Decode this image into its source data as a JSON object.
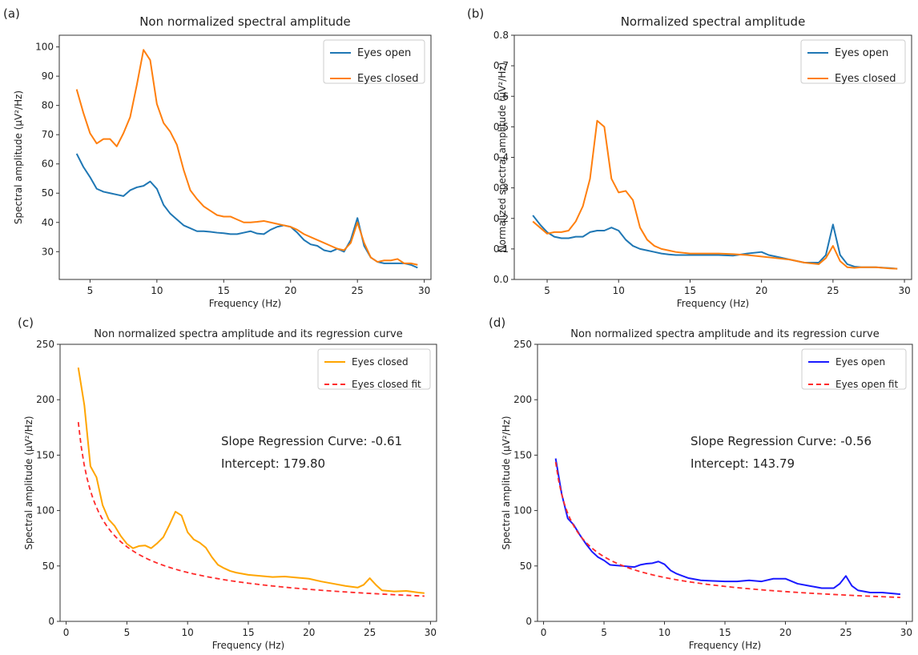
{
  "chart_data": [
    {
      "panel_label": "(a)",
      "type": "line",
      "title": "Non normalized spectral amplitude",
      "xlabel": "Frequency (Hz)",
      "ylabel": "Spectral amplitude (μV²/Hz)",
      "xlim": [
        2.7,
        30.5
      ],
      "ylim": [
        20.5,
        104
      ],
      "xticks": [
        5,
        10,
        15,
        20,
        25,
        30
      ],
      "yticks": [
        30,
        40,
        50,
        60,
        70,
        80,
        90,
        100
      ],
      "legend_position": "top-right",
      "series": [
        {
          "name": "Eyes open",
          "color": "#1f77b4",
          "x": [
            4,
            4.5,
            5,
            5.5,
            6,
            6.5,
            7,
            7.5,
            8,
            8.5,
            9,
            9.5,
            10,
            10.5,
            11,
            11.5,
            12,
            12.5,
            13,
            13.5,
            14,
            14.5,
            15,
            15.5,
            16,
            16.5,
            17,
            17.5,
            18,
            18.5,
            19,
            19.5,
            20,
            20.5,
            21,
            21.5,
            22,
            22.5,
            23,
            23.5,
            24,
            24.5,
            25,
            25.5,
            26,
            26.5,
            27,
            27.5,
            28,
            28.5,
            29,
            29.5
          ],
          "y": [
            63.5,
            59,
            55.5,
            51.5,
            50.5,
            50,
            49.5,
            49,
            51,
            52,
            52.5,
            54,
            51.5,
            46,
            43,
            41,
            39,
            38,
            37,
            37,
            36.8,
            36.5,
            36.3,
            36,
            36,
            36.5,
            37,
            36.2,
            36,
            37.5,
            38.5,
            39,
            38.5,
            36.5,
            34,
            32.5,
            32,
            30.5,
            30,
            31,
            30,
            34,
            41.5,
            32,
            28,
            26.5,
            26,
            26,
            26,
            26,
            25.5,
            24.5
          ]
        },
        {
          "name": "Eyes closed",
          "color": "#ff7f0e",
          "x": [
            4,
            4.5,
            5,
            5.5,
            6,
            6.5,
            7,
            7.5,
            8,
            8.5,
            9,
            9.5,
            10,
            10.5,
            11,
            11.5,
            12,
            12.5,
            13,
            13.5,
            14,
            14.5,
            15,
            15.5,
            16,
            16.5,
            17,
            17.5,
            18,
            18.5,
            19,
            19.5,
            20,
            20.5,
            21,
            21.5,
            22,
            22.5,
            23,
            23.5,
            24,
            24.5,
            25,
            25.5,
            26,
            26.5,
            27,
            27.5,
            28,
            28.5,
            29,
            29.5
          ],
          "y": [
            85.5,
            77.5,
            70.5,
            67,
            68.5,
            68.5,
            66,
            70.5,
            76,
            87,
            99,
            95.5,
            80.5,
            74,
            71,
            66.5,
            58,
            51,
            48,
            45.5,
            44,
            42.5,
            42,
            42,
            41,
            40,
            40,
            40.2,
            40.5,
            40,
            39.5,
            39,
            38.5,
            37.5,
            36,
            35,
            34,
            33,
            32,
            31,
            30.5,
            33,
            40,
            33,
            28,
            26.5,
            27,
            27,
            27.5,
            26,
            26,
            25.5
          ]
        }
      ]
    },
    {
      "panel_label": "(b)",
      "type": "line",
      "title": "Normalized spectral amplitude",
      "xlabel": "Frequency (Hz)",
      "ylabel": "Normalized spectral amplitude (μV²/Hz)",
      "xlim": [
        2.7,
        30.5
      ],
      "ylim": [
        0,
        0.8
      ],
      "xticks": [
        5,
        10,
        15,
        20,
        25,
        30
      ],
      "yticks": [
        0.0,
        0.1,
        0.2,
        0.3,
        0.4,
        0.5,
        0.6,
        0.7,
        0.8
      ],
      "legend_position": "top-right",
      "series": [
        {
          "name": "Eyes open",
          "color": "#1f77b4",
          "x": [
            4,
            4.5,
            5,
            5.5,
            6,
            6.5,
            7,
            7.5,
            8,
            8.5,
            9,
            9.5,
            10,
            10.5,
            11,
            11.5,
            12,
            12.5,
            13,
            13.5,
            14,
            15,
            16,
            17,
            18,
            19,
            20,
            20.5,
            21,
            22,
            23,
            24,
            24.5,
            25,
            25.5,
            26,
            26.5,
            27,
            28,
            29,
            29.5
          ],
          "y": [
            0.21,
            0.18,
            0.155,
            0.14,
            0.135,
            0.135,
            0.14,
            0.14,
            0.155,
            0.16,
            0.16,
            0.17,
            0.16,
            0.13,
            0.11,
            0.1,
            0.095,
            0.09,
            0.085,
            0.082,
            0.08,
            0.08,
            0.08,
            0.08,
            0.078,
            0.085,
            0.09,
            0.08,
            0.075,
            0.065,
            0.055,
            0.055,
            0.08,
            0.18,
            0.08,
            0.05,
            0.042,
            0.04,
            0.04,
            0.037,
            0.035
          ]
        },
        {
          "name": "Eyes closed",
          "color": "#ff7f0e",
          "x": [
            4,
            4.5,
            5,
            5.5,
            6,
            6.5,
            7,
            7.5,
            8,
            8.5,
            9,
            9.5,
            10,
            10.5,
            11,
            11.5,
            12,
            12.5,
            13,
            13.5,
            14,
            15,
            16,
            17,
            18,
            19,
            20,
            21,
            22,
            23,
            24,
            24.5,
            25,
            25.5,
            26,
            26.5,
            27,
            28,
            29,
            29.5
          ],
          "y": [
            0.19,
            0.17,
            0.15,
            0.155,
            0.155,
            0.16,
            0.19,
            0.24,
            0.33,
            0.52,
            0.5,
            0.33,
            0.285,
            0.29,
            0.26,
            0.17,
            0.13,
            0.11,
            0.1,
            0.095,
            0.09,
            0.085,
            0.085,
            0.085,
            0.083,
            0.08,
            0.075,
            0.07,
            0.065,
            0.055,
            0.05,
            0.07,
            0.11,
            0.06,
            0.04,
            0.038,
            0.04,
            0.04,
            0.036,
            0.035
          ]
        }
      ]
    },
    {
      "panel_label": "(c)",
      "type": "line",
      "title": "Non normalized spectra amplitude and its regression curve",
      "xlabel": "Frequency (Hz)",
      "ylabel": "Spectral amplitude (μV²/Hz)",
      "xlim": [
        -0.5,
        30.5
      ],
      "ylim": [
        0,
        250
      ],
      "xticks": [
        0,
        5,
        10,
        15,
        20,
        25,
        30
      ],
      "yticks": [
        0,
        50,
        100,
        150,
        200,
        250
      ],
      "legend_position": "top-right",
      "annotation": {
        "slope": "Slope Regression Curve: -0.61",
        "intercept": "Intercept: 179.80",
        "slope_value": -0.61,
        "intercept_value": 179.8
      },
      "series": [
        {
          "name": "Eyes closed",
          "color": "#ffa500",
          "style": "solid",
          "x": [
            1,
            1.5,
            2,
            2.5,
            3,
            3.5,
            4,
            4.5,
            5,
            5.5,
            6,
            6.5,
            7,
            7.5,
            8,
            8.5,
            9,
            9.5,
            10,
            10.5,
            11,
            11.5,
            12,
            12.5,
            13,
            13.5,
            14,
            15,
            16,
            17,
            18,
            19,
            20,
            21,
            22,
            23,
            24,
            24.5,
            25,
            25.5,
            26,
            27,
            28,
            29,
            29.5
          ],
          "y": [
            229,
            195,
            140,
            130,
            105,
            92,
            86,
            77,
            70,
            66,
            68,
            68.5,
            66,
            70.5,
            76,
            87,
            99,
            95.5,
            80.5,
            74,
            71,
            66.5,
            58,
            51,
            48,
            45.5,
            44,
            42,
            41,
            40,
            40.5,
            39.5,
            38.5,
            36,
            34,
            32,
            30.5,
            33,
            39,
            33,
            28,
            27,
            27.5,
            26,
            25.5
          ]
        },
        {
          "name": "Eyes closed fit",
          "color": "#ff2a2a",
          "style": "dashed",
          "fit": {
            "intercept": 179.8,
            "slope": -0.61
          },
          "x_range": [
            1,
            29.5
          ]
        }
      ]
    },
    {
      "panel_label": "(d)",
      "type": "line",
      "title": "Non normalized spectra amplitude and its regression curve",
      "xlabel": "Frequency (Hz)",
      "ylabel": "Spectral amplitude (μV²/Hz)",
      "xlim": [
        -0.5,
        30.5
      ],
      "ylim": [
        0,
        250
      ],
      "xticks": [
        0,
        5,
        10,
        15,
        20,
        25,
        30
      ],
      "yticks": [
        0,
        50,
        100,
        150,
        200,
        250
      ],
      "legend_position": "top-right",
      "annotation": {
        "slope": "Slope Regression Curve: -0.56",
        "intercept": "Intercept: 143.79",
        "slope_value": -0.56,
        "intercept_value": 143.79
      },
      "series": [
        {
          "name": "Eyes open",
          "color": "#1a1aff",
          "style": "solid",
          "x": [
            1,
            1.5,
            2,
            2.5,
            3,
            3.5,
            4,
            4.5,
            5,
            5.5,
            6,
            6.5,
            7,
            7.5,
            8,
            8.5,
            9,
            9.5,
            10,
            10.5,
            11,
            11.5,
            12,
            12.5,
            13,
            14,
            15,
            16,
            17,
            18,
            19,
            20,
            21,
            22,
            23,
            24,
            24.5,
            25,
            25.5,
            26,
            27,
            28,
            29,
            29.5
          ],
          "y": [
            147,
            115,
            93,
            87,
            78,
            70,
            63,
            58,
            55,
            51,
            50.5,
            50,
            49.5,
            49,
            51,
            52,
            52.5,
            54,
            51.5,
            46,
            43,
            41,
            39,
            38,
            37,
            36.5,
            36,
            36,
            37,
            36,
            38.5,
            38.5,
            34,
            32,
            30,
            30,
            34,
            41,
            32,
            28,
            26,
            26,
            25,
            24.5
          ]
        },
        {
          "name": "Eyes open fit",
          "color": "#ff2a2a",
          "style": "dashed",
          "fit": {
            "intercept": 143.79,
            "slope": -0.56
          },
          "x_range": [
            1,
            29.5
          ]
        }
      ]
    }
  ]
}
